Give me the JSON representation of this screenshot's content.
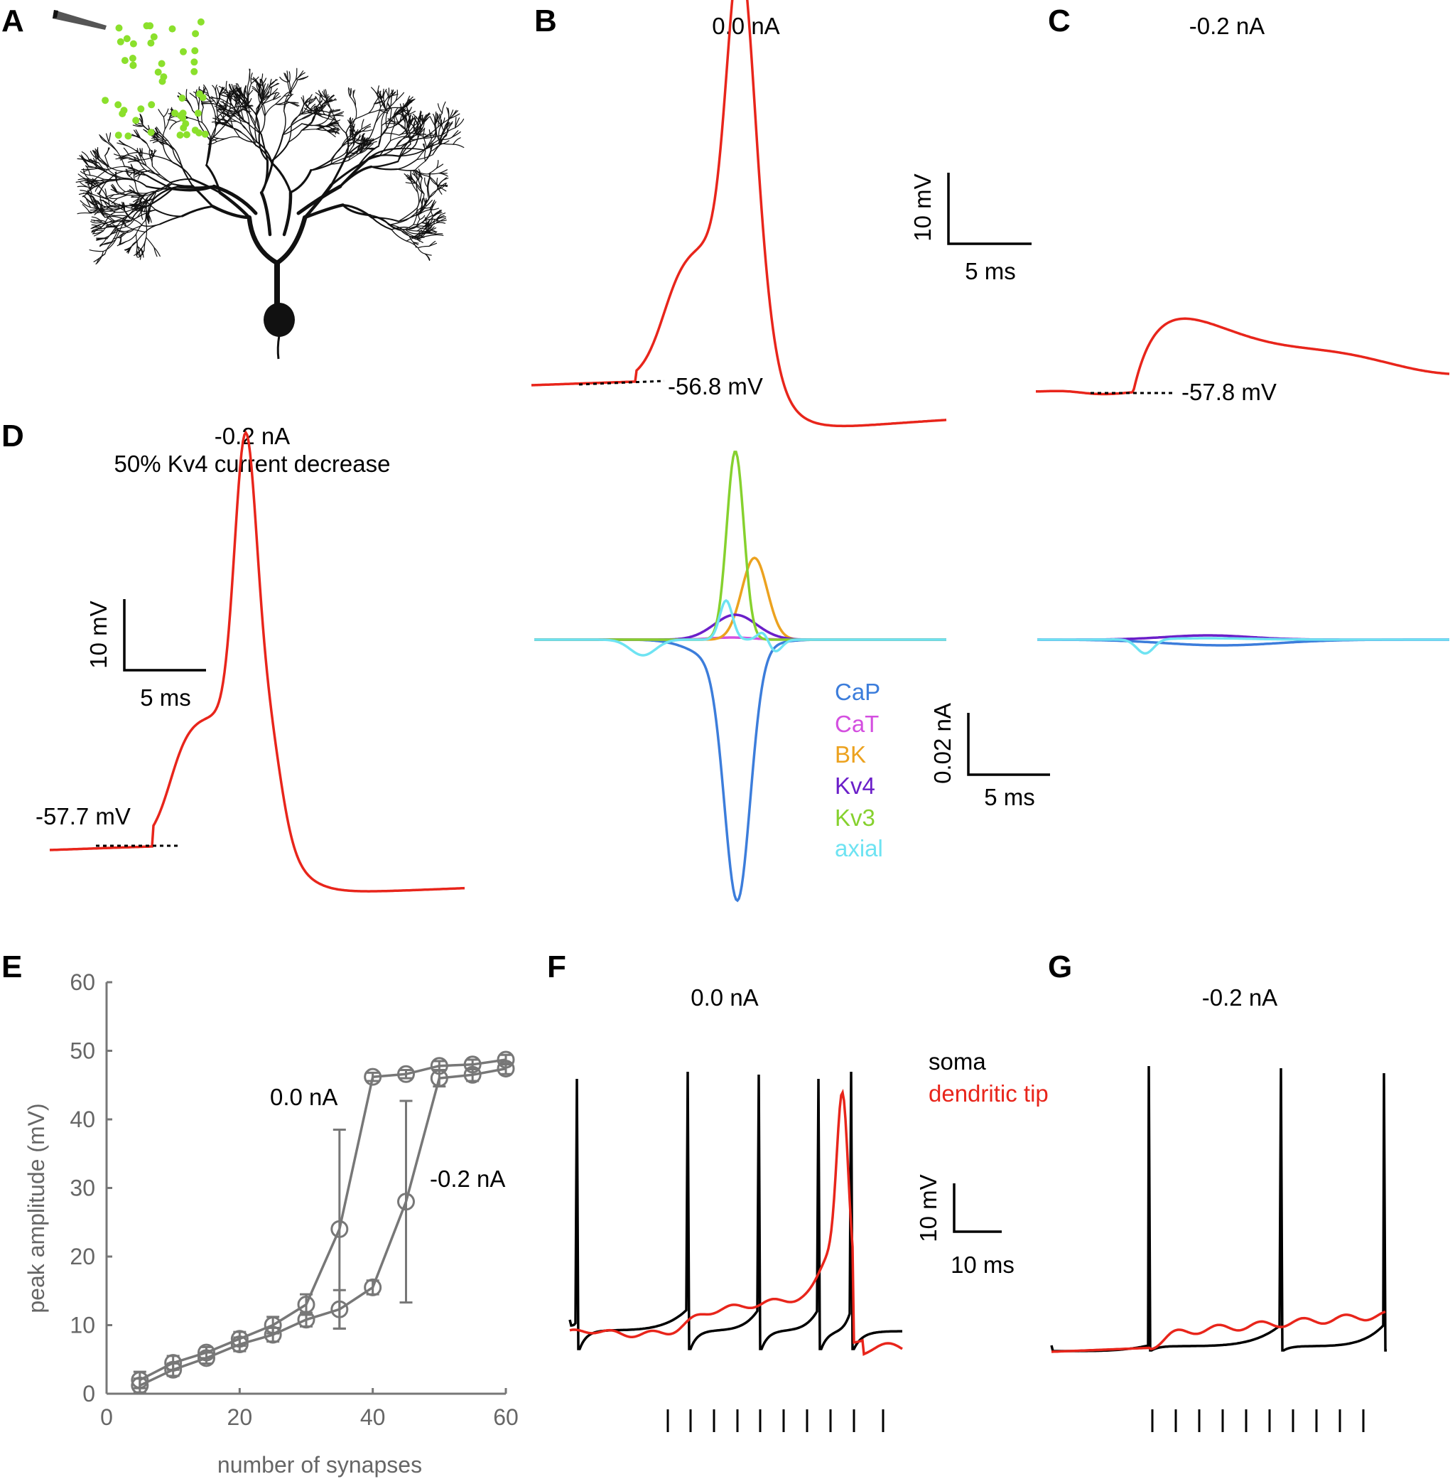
{
  "colors": {
    "trace_red": "#e8251b",
    "trace_black": "#000000",
    "axis_gray": "#777777",
    "synapse_green": "#8be02c",
    "CaP": "#3c7ddb",
    "CaT": "#d44fe0",
    "BK": "#eca21f",
    "Kv4": "#6b1fc9",
    "Kv3": "#86d12e",
    "axial": "#6ee3f2"
  },
  "panels": {
    "A": {
      "label": "A",
      "icons": [
        "pipette-icon",
        "purkinje-neuron-icon"
      ]
    },
    "B": {
      "label": "B",
      "condition": "0.0 nA",
      "baseline": "-56.8 mV"
    },
    "C": {
      "label": "C",
      "condition": "-0.2 nA",
      "baseline": "-57.8 mV"
    },
    "D": {
      "label": "D",
      "condition": "-0.2 nA",
      "subtitle": "50% Kv4 current decrease",
      "baseline": "-57.7 mV"
    },
    "E": {
      "label": "E"
    },
    "F": {
      "label": "F",
      "condition": "0.0 nA"
    },
    "G": {
      "label": "G",
      "condition": "-0.2 nA"
    }
  },
  "scalebars": {
    "bc_voltage": {
      "v": "10 mV",
      "t": "5 ms"
    },
    "bc_current": {
      "v": "0.02 nA",
      "t": "5 ms"
    },
    "d_voltage": {
      "v": "10 mV",
      "t": "5 ms"
    },
    "fg_voltage": {
      "v": "10 mV",
      "t": "10 ms"
    }
  },
  "current_legend": [
    "CaP",
    "CaT",
    "BK",
    "Kv4",
    "Kv3",
    "axial"
  ],
  "fg_legend": {
    "soma": "soma",
    "dendrite": "dendritic tip"
  },
  "chart_data": {
    "type": "line",
    "xlabel": "number of synapses",
    "ylabel": "peak amplitude (mV)",
    "xlim": [
      0,
      60
    ],
    "ylim": [
      0,
      60
    ],
    "xticks": [
      0,
      20,
      40,
      60
    ],
    "yticks": [
      0,
      10,
      20,
      30,
      40,
      50,
      60
    ],
    "grid": false,
    "series": [
      {
        "name": "0.0 nA",
        "x": [
          5,
          10,
          15,
          20,
          25,
          30,
          35,
          40,
          45,
          50,
          55,
          60
        ],
        "y": [
          2,
          4.5,
          6,
          8,
          10,
          13,
          24,
          46.2,
          46.6,
          47.8,
          48,
          48.7
        ],
        "err": [
          1.2,
          1,
          0.8,
          1,
          1.2,
          1.5,
          14.5,
          0.6,
          0.6,
          0.7,
          0.7,
          0.7
        ]
      },
      {
        "name": "-0.2 nA",
        "x": [
          5,
          10,
          15,
          20,
          25,
          30,
          35,
          40,
          45,
          50,
          55,
          60
        ],
        "y": [
          1.2,
          3.5,
          5.2,
          7.2,
          8.6,
          10.8,
          12.3,
          15.5,
          28,
          46,
          46.5,
          47.4
        ],
        "err": [
          1,
          0.9,
          0.8,
          1,
          1,
          1,
          2.8,
          1,
          14.7,
          1.2,
          0.9,
          0.8
        ]
      }
    ]
  }
}
